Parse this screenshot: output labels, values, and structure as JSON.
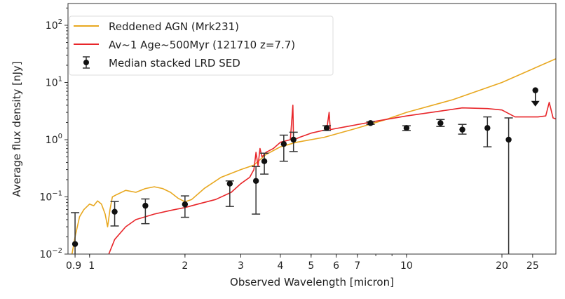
{
  "chart_data": {
    "type": "line",
    "title": "",
    "xlabel": "Observed Wavelength [micron]",
    "ylabel": "Average flux density [nJy]",
    "xscale": "log",
    "yscale": "log",
    "xlim": [
      0.855,
      29.6
    ],
    "ylim": [
      0.01,
      240
    ],
    "grid": false,
    "legend_placement": "top-left",
    "x_ticks": [
      {
        "value": 0.9,
        "label": "0.9"
      },
      {
        "value": 1,
        "label": "1"
      },
      {
        "value": 2,
        "label": "2"
      },
      {
        "value": 3,
        "label": "3"
      },
      {
        "value": 4,
        "label": "4"
      },
      {
        "value": 5,
        "label": "5"
      },
      {
        "value": 6,
        "label": "6"
      },
      {
        "value": 7,
        "label": "7"
      },
      {
        "value": 10,
        "label": "10"
      },
      {
        "value": 20,
        "label": "20"
      },
      {
        "value": 25,
        "label": "25"
      }
    ],
    "y_ticks": [
      {
        "value": 0.01,
        "base": "10",
        "exp": "−2"
      },
      {
        "value": 0.1,
        "base": "10",
        "exp": "−1"
      },
      {
        "value": 1,
        "base": "10",
        "exp": "0"
      },
      {
        "value": 10,
        "base": "10",
        "exp": "1"
      },
      {
        "value": 100,
        "base": "10",
        "exp": "2"
      }
    ],
    "series": [
      {
        "name": "Reddened AGN (Mrk231)",
        "color": "#e8a820",
        "kind": "line",
        "x": [
          0.88,
          0.9,
          0.93,
          0.96,
          1.0,
          1.03,
          1.06,
          1.09,
          1.12,
          1.14,
          1.16,
          1.18,
          1.22,
          1.3,
          1.4,
          1.5,
          1.6,
          1.7,
          1.8,
          1.9,
          2.0,
          2.1,
          2.3,
          2.6,
          3.0,
          3.3,
          3.6,
          4.0,
          4.5,
          5.5,
          7.0,
          8.5,
          10,
          14,
          20,
          29.6
        ],
        "y": [
          0.01,
          0.02,
          0.045,
          0.06,
          0.075,
          0.07,
          0.085,
          0.075,
          0.05,
          0.03,
          0.06,
          0.1,
          0.11,
          0.13,
          0.12,
          0.14,
          0.15,
          0.14,
          0.12,
          0.095,
          0.082,
          0.09,
          0.14,
          0.22,
          0.3,
          0.36,
          0.55,
          0.75,
          0.9,
          1.1,
          1.6,
          2.2,
          3.0,
          5.0,
          10,
          26
        ]
      },
      {
        "name": "Av~1 Age~500Myr (121710 z=7.7)",
        "color": "#e8262a",
        "kind": "line",
        "x": [
          1.15,
          1.2,
          1.3,
          1.4,
          1.6,
          1.8,
          2.0,
          2.2,
          2.5,
          2.8,
          3.0,
          3.2,
          3.3,
          3.35,
          3.4,
          3.45,
          3.5,
          3.6,
          3.8,
          4.0,
          4.3,
          4.38,
          4.4,
          4.42,
          4.6,
          5.0,
          5.6,
          5.7,
          5.75,
          6.5,
          8.0,
          10,
          13,
          15,
          18,
          20,
          22,
          26,
          27.5,
          28.2,
          29,
          29.6
        ],
        "y": [
          0.01,
          0.018,
          0.03,
          0.04,
          0.05,
          0.058,
          0.065,
          0.075,
          0.09,
          0.12,
          0.17,
          0.22,
          0.3,
          0.6,
          0.35,
          0.7,
          0.5,
          0.6,
          0.7,
          0.9,
          1.0,
          4.0,
          1.0,
          1.0,
          1.1,
          1.3,
          1.5,
          3.0,
          1.5,
          1.7,
          2.1,
          2.6,
          3.2,
          3.6,
          3.5,
          3.3,
          2.5,
          2.5,
          2.6,
          4.5,
          2.4,
          2.3
        ]
      },
      {
        "name": "Median stacked LRD SED",
        "color": "#111111",
        "kind": "errorbar",
        "points": [
          {
            "x": 0.9,
            "y": 0.015,
            "low": 0.005,
            "high": 0.053
          },
          {
            "x": 1.2,
            "y": 0.055,
            "low": 0.031,
            "high": 0.083
          },
          {
            "x": 1.5,
            "y": 0.07,
            "low": 0.034,
            "high": 0.092
          },
          {
            "x": 2.0,
            "y": 0.074,
            "low": 0.044,
            "high": 0.104
          },
          {
            "x": 2.77,
            "y": 0.17,
            "low": 0.068,
            "high": 0.19
          },
          {
            "x": 3.35,
            "y": 0.19,
            "low": 0.05,
            "high": 0.34
          },
          {
            "x": 3.56,
            "y": 0.42,
            "low": 0.25,
            "high": 0.58
          },
          {
            "x": 4.1,
            "y": 0.84,
            "low": 0.42,
            "high": 1.2
          },
          {
            "x": 4.4,
            "y": 1.0,
            "low": 0.62,
            "high": 1.35
          },
          {
            "x": 5.6,
            "y": 1.6,
            "low": 1.45,
            "high": 1.75
          },
          {
            "x": 7.7,
            "y": 1.95,
            "low": 1.85,
            "high": 2.05
          },
          {
            "x": 10.0,
            "y": 1.6,
            "low": 1.45,
            "high": 1.75
          },
          {
            "x": 12.8,
            "y": 1.95,
            "low": 1.7,
            "high": 2.25
          },
          {
            "x": 15.0,
            "y": 1.5,
            "low": 1.25,
            "high": 1.85
          },
          {
            "x": 18.0,
            "y": 1.6,
            "low": 0.75,
            "high": 2.5
          },
          {
            "x": 21.0,
            "y": 1.0,
            "low": 0.005,
            "high": 2.4
          },
          {
            "x": 25.5,
            "y": 7.3,
            "upper_limit": true,
            "arrow_to": 3.8
          }
        ]
      }
    ]
  }
}
